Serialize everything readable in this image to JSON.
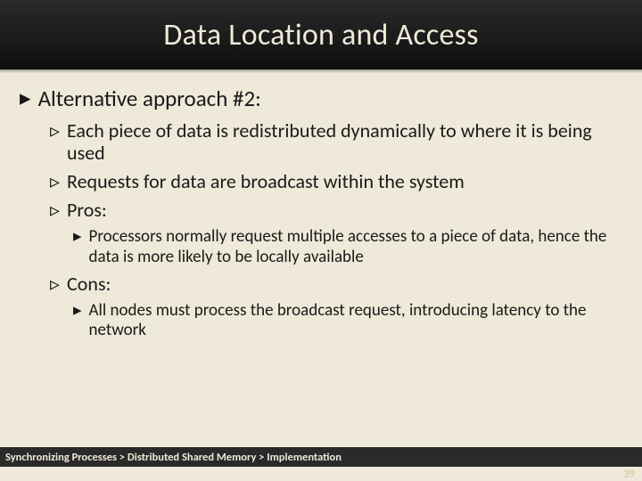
{
  "slide": {
    "title": "Data Location and Access",
    "background_color": "#efe9d9",
    "header_gradient": [
      "#2a2a2a",
      "#1a1a1a",
      "#0e0e0e"
    ],
    "title_color": "#efe9d9",
    "title_fontsize": 34,
    "text_color": "#1a1a1a",
    "bullets": {
      "l1_glyph": "▸",
      "l2_glyph": "▹",
      "l3_glyph": "▸",
      "l1_fontsize": 25,
      "l2_fontsize": 22,
      "l3_fontsize": 19
    },
    "content": {
      "heading": "Alternative approach #2:",
      "sub": [
        "Each piece of data is redistributed dynamically to where it is being used",
        "Requests for data are broadcast within the system",
        "Pros:"
      ],
      "pros": [
        "Processors normally request multiple accesses to a piece of data, hence the data is more likely to be locally available"
      ],
      "cons_label": "Cons:",
      "cons": [
        "All nodes must process the broadcast request, introducing latency to the network"
      ]
    },
    "breadcrumb": "Synchronizing Processes > Distributed Shared Memory > Implementation",
    "page_number": "39",
    "footer_bg": "#2a2a2a",
    "footer_color": "#efe9d9",
    "footer_fontsize": 12.5,
    "page_number_color": "#d8cfa8"
  }
}
